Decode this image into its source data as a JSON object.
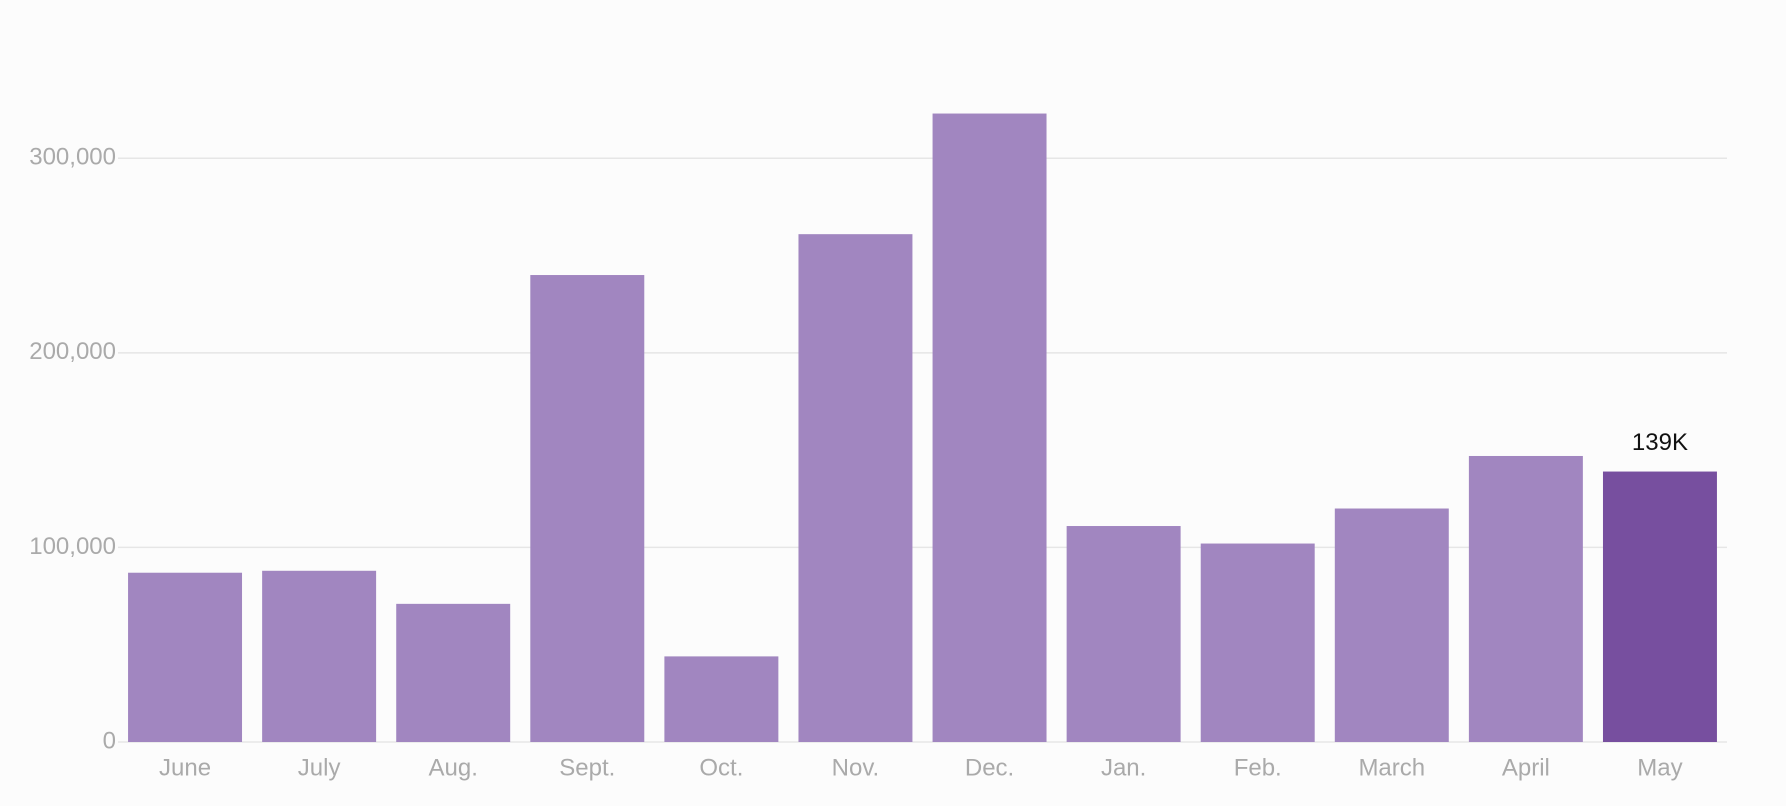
{
  "chart_data": {
    "type": "bar",
    "categories": [
      "June",
      "July",
      "Aug.",
      "Sept.",
      "Oct.",
      "Nov.",
      "Dec.",
      "Jan.",
      "Feb.",
      "March",
      "April",
      "May"
    ],
    "values": [
      87000,
      88000,
      71000,
      240000,
      44000,
      261000,
      323000,
      111000,
      102000,
      120000,
      147000,
      139000
    ],
    "value_labels": [
      null,
      null,
      null,
      null,
      null,
      null,
      null,
      null,
      null,
      null,
      null,
      "139K"
    ],
    "colors": [
      "#a186c0",
      "#a186c0",
      "#a186c0",
      "#a186c0",
      "#a186c0",
      "#a186c0",
      "#a186c0",
      "#a186c0",
      "#a186c0",
      "#a186c0",
      "#a186c0",
      "#774f9f"
    ],
    "ylim": [
      0,
      350000
    ],
    "yticks": [
      0,
      {
        "value": 100000,
        "label": "100,000"
      },
      {
        "value": 200000,
        "label": "200,000"
      },
      {
        "value": 300000,
        "label": "300,000"
      }
    ],
    "grid": true
  }
}
